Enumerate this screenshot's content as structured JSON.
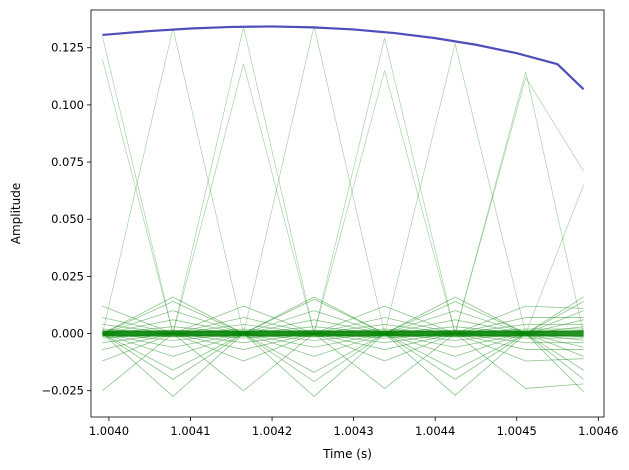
{
  "chart_data": {
    "type": "line",
    "title": "",
    "xlabel": "Time (s)",
    "ylabel": "Amplitude",
    "xlim": [
      1.003978,
      1.004607
    ],
    "ylim": [
      -0.0365,
      0.1415
    ],
    "grid": false,
    "x_ticks": [
      1.004,
      1.0041,
      1.0042,
      1.0043,
      1.0044,
      1.0045,
      1.0046
    ],
    "x_tick_labels": [
      "1.0040",
      "1.0041",
      "1.0042",
      "1.0043",
      "1.0044",
      "1.0045",
      "1.0046"
    ],
    "y_ticks": [
      -0.025,
      0,
      0.025,
      0.05,
      0.075,
      0.1,
      0.125
    ],
    "y_tick_labels": [
      "−0.025",
      "0.000",
      "0.025",
      "0.050",
      "0.075",
      "0.100",
      "0.125"
    ],
    "colors": {
      "envelope": "#3b3bb3",
      "component": "#008000"
    },
    "series": [
      {
        "role": "envelope",
        "x": [
          1.003992,
          1.00405,
          1.0041,
          1.00415,
          1.0042,
          1.00425,
          1.0043,
          1.00435,
          1.0044,
          1.00445,
          1.0045,
          1.00455,
          1.004582
        ],
        "values": [
          0.1306,
          0.1323,
          0.1334,
          0.1341,
          0.1343,
          0.1339,
          0.133,
          0.1314,
          0.1292,
          0.1263,
          0.1226,
          0.1178,
          0.1068
        ]
      },
      {
        "role": "component",
        "x": [
          1.003992,
          1.0040785,
          1.004165,
          1.0042515,
          1.004338,
          1.0044245,
          1.004511,
          1.004582
        ],
        "values": [
          0.13,
          0.0,
          0.1341,
          0.0,
          0.1292,
          0.0,
          0.1145,
          0.0
        ]
      },
      {
        "role": "component",
        "x": [
          1.003992,
          1.0040785,
          1.004165,
          1.0042515,
          1.004338,
          1.0044245,
          1.004511,
          1.004582
        ],
        "values": [
          0.0,
          0.1335,
          0.0,
          0.1345,
          0.0,
          0.1268,
          0.0,
          0.065
        ]
      },
      {
        "role": "component",
        "x": [
          1.003992,
          1.0040785,
          1.004165,
          1.0042515,
          1.004338,
          1.0044245,
          1.004511,
          1.004582
        ],
        "values": [
          0.12,
          0.0,
          0.118,
          0.0,
          0.115,
          0.0,
          0.112,
          0.071
        ]
      },
      {
        "role": "component",
        "x": [
          1.003992,
          1.0040785,
          1.004165,
          1.0042515,
          1.004338,
          1.0044245,
          1.004511,
          1.004582
        ],
        "values": [
          0.0,
          -0.0275,
          0.0,
          -0.0275,
          0.0,
          -0.027,
          0.0,
          -0.0255
        ]
      },
      {
        "role": "component",
        "x": [
          1.003992,
          1.0040785,
          1.004165,
          1.0042515,
          1.004338,
          1.0044245,
          1.004511,
          1.004582
        ],
        "values": [
          -0.025,
          0.0,
          -0.025,
          0.0,
          -0.024,
          0.0,
          -0.024,
          -0.022
        ]
      },
      {
        "role": "component",
        "x": [
          1.003992,
          1.0040785,
          1.004165,
          1.0042515,
          1.004338,
          1.0044245,
          1.004511,
          1.004582
        ],
        "values": [
          0.0,
          0.016,
          0.0,
          0.016,
          0.0,
          0.016,
          0.0,
          0.016
        ]
      },
      {
        "role": "component",
        "x": [
          1.003992,
          1.0040785,
          1.004165,
          1.0042515,
          1.004338,
          1.0044245,
          1.004511,
          1.004582
        ],
        "values": [
          0.0,
          0.014,
          0.0,
          0.015,
          0.0,
          0.014,
          0.0,
          0.014
        ]
      },
      {
        "role": "component",
        "x": [
          1.003992,
          1.0040785,
          1.004165,
          1.0042515,
          1.004338,
          1.0044245,
          1.004511,
          1.004582
        ],
        "values": [
          0.0,
          -0.016,
          0.0,
          -0.017,
          0.0,
          -0.016,
          0.0,
          -0.016
        ]
      },
      {
        "role": "component",
        "x": [
          1.003992,
          1.0040785,
          1.004165,
          1.0042515,
          1.004338,
          1.0044245,
          1.004511,
          1.004582
        ],
        "values": [
          0.0,
          -0.02,
          0.0,
          -0.021,
          0.0,
          -0.02,
          0.0,
          -0.02
        ]
      },
      {
        "role": "component",
        "x": [
          1.003992,
          1.0040785,
          1.004165,
          1.0042515,
          1.004338,
          1.0044245,
          1.004511,
          1.004582
        ],
        "values": [
          0.012,
          0.0,
          0.012,
          0.0,
          0.012,
          0.0,
          0.012,
          0.011
        ]
      },
      {
        "role": "component",
        "x": [
          1.003992,
          1.0040785,
          1.004165,
          1.0042515,
          1.004338,
          1.0044245,
          1.004511,
          1.004582
        ],
        "values": [
          -0.012,
          0.0,
          -0.012,
          0.0,
          -0.012,
          0.0,
          -0.012,
          -0.011
        ]
      },
      {
        "role": "component",
        "x": [
          1.003992,
          1.0040785,
          1.004165,
          1.0042515,
          1.004338,
          1.0044245,
          1.004511,
          1.004582
        ],
        "values": [
          0.0,
          0.01,
          0.0,
          0.01,
          0.0,
          0.01,
          0.0,
          0.01
        ]
      },
      {
        "role": "component",
        "x": [
          1.003992,
          1.0040785,
          1.004165,
          1.0042515,
          1.004338,
          1.0044245,
          1.004511,
          1.004582
        ],
        "values": [
          0.0,
          -0.01,
          0.0,
          -0.01,
          0.0,
          -0.01,
          0.0,
          -0.01
        ]
      },
      {
        "role": "component",
        "x": [
          1.003992,
          1.0040785,
          1.004165,
          1.0042515,
          1.004338,
          1.0044245,
          1.004511,
          1.004582
        ],
        "values": [
          0.007,
          0.0,
          0.007,
          0.0,
          0.007,
          0.0,
          0.007,
          0.007
        ]
      },
      {
        "role": "component",
        "x": [
          1.003992,
          1.0040785,
          1.004165,
          1.0042515,
          1.004338,
          1.0044245,
          1.004511,
          1.004582
        ],
        "values": [
          -0.007,
          0.0,
          -0.007,
          0.0,
          -0.007,
          0.0,
          -0.007,
          -0.007
        ]
      },
      {
        "role": "component",
        "x": [
          1.003992,
          1.0040785,
          1.004165,
          1.0042515,
          1.004338,
          1.0044245,
          1.004511,
          1.004582
        ],
        "values": [
          0.0,
          0.006,
          0.0,
          0.006,
          0.0,
          0.006,
          0.0,
          0.006
        ]
      },
      {
        "role": "component",
        "x": [
          1.003992,
          1.0040785,
          1.004165,
          1.0042515,
          1.004338,
          1.0044245,
          1.004511,
          1.004582
        ],
        "values": [
          0.0,
          -0.006,
          0.0,
          -0.006,
          0.0,
          -0.006,
          0.0,
          -0.006
        ]
      },
      {
        "role": "component",
        "x": [
          1.003992,
          1.0040785,
          1.004165,
          1.0042515,
          1.004338,
          1.0044245,
          1.004511,
          1.004582
        ],
        "values": [
          0.004,
          0.0,
          0.004,
          0.0,
          0.004,
          0.0,
          0.004,
          0.004
        ]
      },
      {
        "role": "component",
        "x": [
          1.003992,
          1.0040785,
          1.004165,
          1.0042515,
          1.004338,
          1.0044245,
          1.004511,
          1.004582
        ],
        "values": [
          -0.004,
          0.0,
          -0.004,
          0.0,
          -0.004,
          0.0,
          -0.004,
          -0.004
        ]
      },
      {
        "role": "component",
        "x": [
          1.003992,
          1.0040785,
          1.004165,
          1.0042515,
          1.004338,
          1.0044245,
          1.004511,
          1.004582
        ],
        "values": [
          0.0,
          0.003,
          0.0,
          0.003,
          0.0,
          0.003,
          0.0,
          0.003
        ]
      },
      {
        "role": "component",
        "x": [
          1.003992,
          1.0040785,
          1.004165,
          1.0042515,
          1.004338,
          1.0044245,
          1.004511,
          1.004582
        ],
        "values": [
          0.0,
          -0.003,
          0.0,
          -0.003,
          0.0,
          -0.003,
          0.0,
          -0.003
        ]
      },
      {
        "role": "component",
        "x": [
          1.003992,
          1.0040785,
          1.004165,
          1.0042515,
          1.004338,
          1.0044245,
          1.004511,
          1.004582
        ],
        "values": [
          0.002,
          0.0,
          0.002,
          0.0,
          0.002,
          0.0,
          0.002,
          0.002
        ]
      },
      {
        "role": "component",
        "x": [
          1.003992,
          1.0040785,
          1.004165,
          1.0042515,
          1.004338,
          1.0044245,
          1.004511,
          1.004582
        ],
        "values": [
          -0.002,
          0.0,
          -0.002,
          0.0,
          -0.002,
          0.0,
          -0.002,
          -0.002
        ]
      },
      {
        "role": "component",
        "x": [
          1.003992,
          1.0040785,
          1.004165,
          1.0042515,
          1.004338,
          1.0044245,
          1.004511,
          1.004582
        ],
        "values": [
          0.0,
          0.0015,
          0.0,
          0.0015,
          0.0,
          0.0015,
          0.0,
          0.0015
        ]
      },
      {
        "role": "component",
        "x": [
          1.003992,
          1.0040785,
          1.004165,
          1.0042515,
          1.004338,
          1.0044245,
          1.004511,
          1.004582
        ],
        "values": [
          0.0,
          -0.0015,
          0.0,
          -0.0015,
          0.0,
          -0.0015,
          0.0,
          -0.0015
        ]
      },
      {
        "role": "component",
        "x": [
          1.003992,
          1.0040785,
          1.004165,
          1.0042515,
          1.004338,
          1.0044245,
          1.004511,
          1.004582
        ],
        "values": [
          0.001,
          0.0,
          0.001,
          0.0,
          0.001,
          0.0,
          0.001,
          0.001
        ]
      },
      {
        "role": "component",
        "x": [
          1.003992,
          1.0040785,
          1.004165,
          1.0042515,
          1.004338,
          1.0044245,
          1.004511,
          1.004582
        ],
        "values": [
          -0.001,
          0.0,
          -0.001,
          0.0,
          -0.001,
          0.0,
          -0.001,
          -0.001
        ]
      }
    ]
  }
}
